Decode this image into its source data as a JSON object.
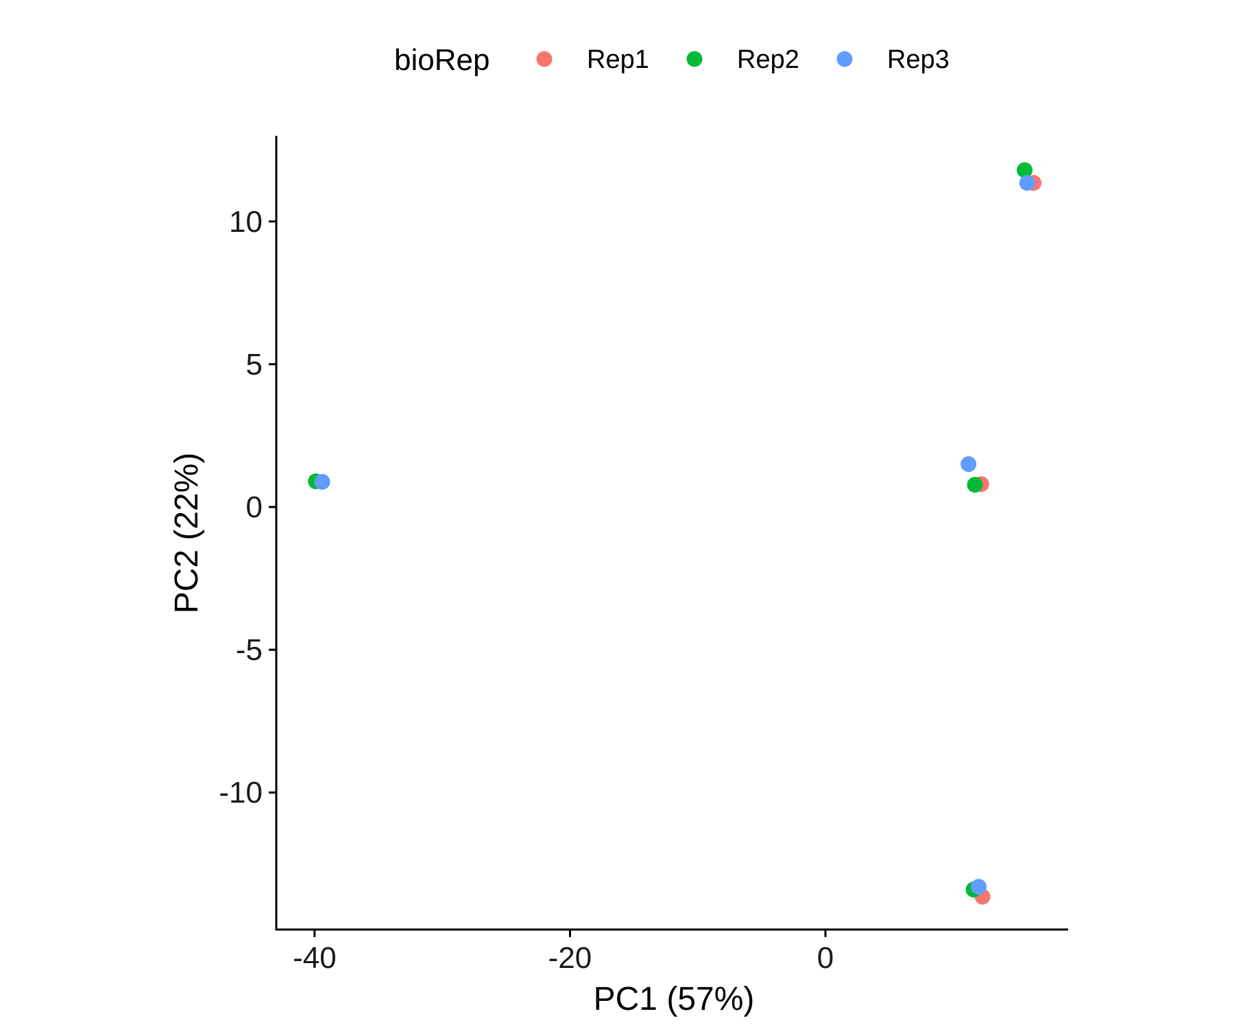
{
  "chart_data": {
    "type": "scatter",
    "xlabel": "PC1 (57%)",
    "ylabel": "PC2 (22%)",
    "xlim": [
      -43,
      19
    ],
    "ylim": [
      -14.8,
      13.0
    ],
    "x_ticks": [
      -40,
      -20,
      0
    ],
    "y_ticks": [
      -10,
      -5,
      0,
      5,
      10
    ],
    "grid": false,
    "legend": {
      "title": "bioRep",
      "position": "top"
    },
    "series": [
      {
        "name": "Rep1",
        "color": "#F8766D",
        "points": [
          {
            "x": 16.3,
            "y": 11.35
          },
          {
            "x": 12.2,
            "y": 0.8
          },
          {
            "x": 12.3,
            "y": -13.65
          }
        ]
      },
      {
        "name": "Rep2",
        "color": "#00BA38",
        "points": [
          {
            "x": 15.6,
            "y": 11.8
          },
          {
            "x": -39.9,
            "y": 0.9
          },
          {
            "x": 11.7,
            "y": 0.78
          },
          {
            "x": 11.6,
            "y": -13.4
          }
        ]
      },
      {
        "name": "Rep3",
        "color": "#619CFF",
        "points": [
          {
            "x": 15.8,
            "y": 11.35
          },
          {
            "x": -39.4,
            "y": 0.88
          },
          {
            "x": 11.2,
            "y": 1.5
          },
          {
            "x": 12.0,
            "y": -13.3
          }
        ]
      }
    ]
  }
}
